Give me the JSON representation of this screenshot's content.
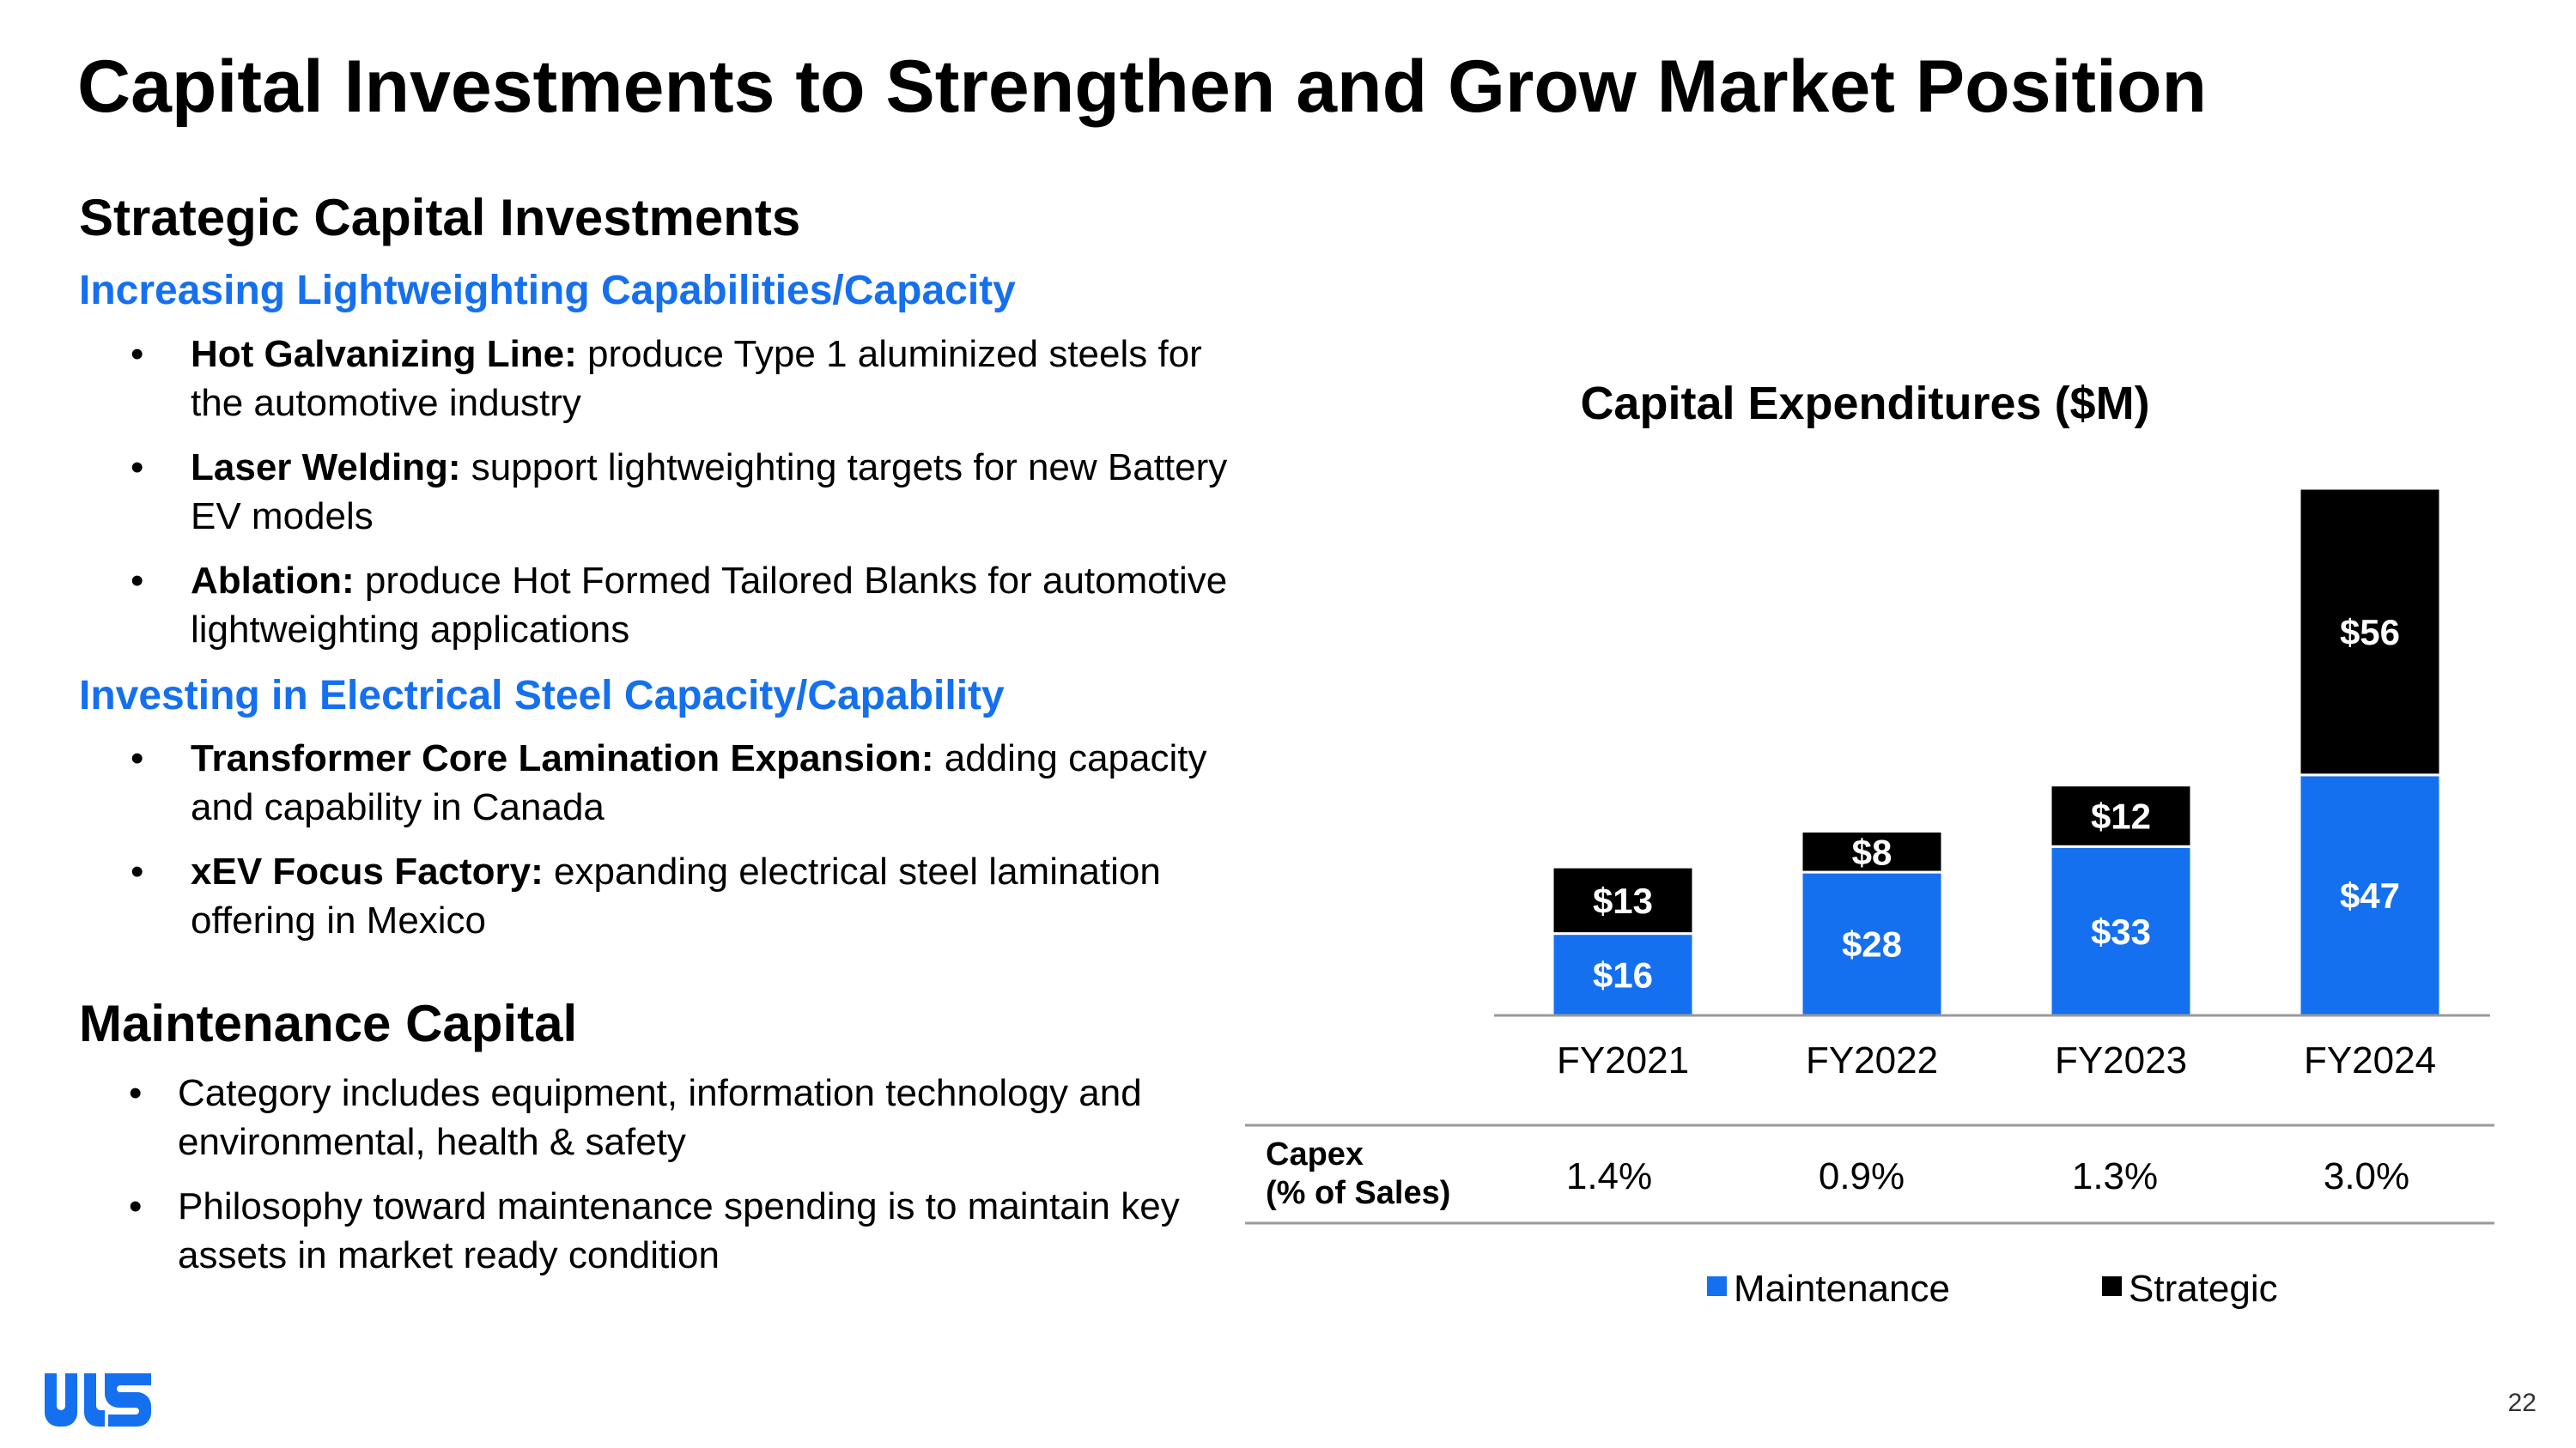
{
  "page": {
    "title": "Capital Investments to Strengthen and Grow Market Position",
    "page_number": "22"
  },
  "left": {
    "strategic_heading": "Strategic Capital Investments",
    "group1": {
      "heading": "Increasing Lightweighting Capabilities/Capacity",
      "items": [
        {
          "bold": "Hot Galvanizing Line:",
          "text": " produce Type 1 aluminized steels for the automotive industry"
        },
        {
          "bold": "Laser Welding:",
          "text": " support lightweighting targets for new Battery EV models"
        },
        {
          "bold": "Ablation:",
          "text": " produce Hot Formed Tailored Blanks for automotive lightweighting applications"
        }
      ]
    },
    "group2": {
      "heading": "Investing in Electrical Steel Capacity/Capability",
      "items": [
        {
          "bold": "Transformer Core Lamination Expansion:",
          "text": " adding capacity and capability in Canada"
        },
        {
          "bold": "xEV Focus Factory:",
          "text": " expanding electrical steel lamination offering in Mexico"
        }
      ]
    },
    "maintenance_heading": "Maintenance Capital",
    "maintenance_items": [
      "Category includes equipment, information technology and environmental, health & safety",
      "Philosophy toward maintenance spending is to maintain key assets in market ready condition"
    ]
  },
  "chart_data": {
    "type": "bar",
    "stacked": true,
    "title": "Capital Expenditures ($M)",
    "categories": [
      "FY2021",
      "FY2022",
      "FY2023",
      "FY2024"
    ],
    "series": [
      {
        "name": "Maintenance",
        "color": "#1570EF",
        "values": [
          16,
          28,
          33,
          47
        ],
        "labels": [
          "$16",
          "$28",
          "$33",
          "$47"
        ]
      },
      {
        "name": "Strategic",
        "color": "#000000",
        "values": [
          13,
          8,
          12,
          56
        ],
        "labels": [
          "$13",
          "$8",
          "$12",
          "$56"
        ]
      }
    ],
    "ylim": [
      0,
      103
    ],
    "legend": "bottom",
    "table": {
      "row_label_lines": [
        "Capex",
        "(% of Sales)"
      ],
      "values": [
        "1.4%",
        "0.9%",
        "1.3%",
        "3.0%"
      ]
    }
  }
}
